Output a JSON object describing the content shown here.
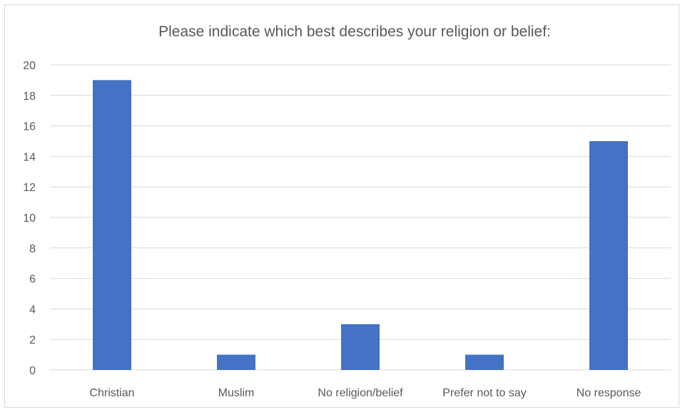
{
  "chart_data": {
    "type": "bar",
    "title": "Please indicate which best describes your religion or belief:",
    "xlabel": "",
    "ylabel": "",
    "categories": [
      "Christian",
      "Muslim",
      "No religion/belief",
      "Prefer not to say",
      "No response"
    ],
    "values": [
      19,
      1,
      3,
      1,
      15
    ],
    "ylim": [
      0,
      20
    ],
    "yticks": [
      0,
      2,
      4,
      6,
      8,
      10,
      12,
      14,
      16,
      18,
      20
    ],
    "grid": true,
    "legend": "none",
    "bar_color": "#4472c4"
  }
}
